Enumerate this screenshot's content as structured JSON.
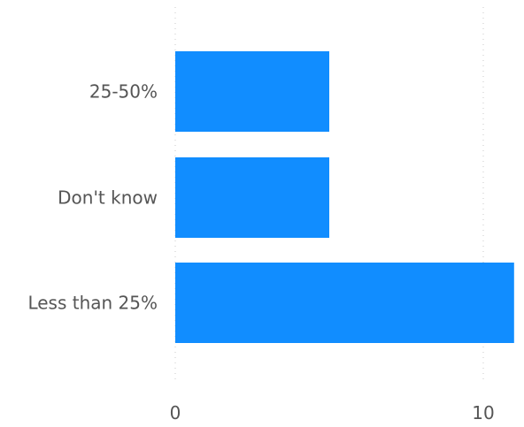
{
  "chart_data": {
    "type": "bar",
    "orientation": "horizontal",
    "categories": [
      "25-50%",
      "Don't know",
      "Less than 25%"
    ],
    "values": [
      5,
      5,
      11
    ],
    "xlim": [
      0,
      11
    ],
    "x_ticks": [
      0,
      10
    ],
    "title": "",
    "xlabel": "",
    "ylabel": "",
    "grid": "vertical dotted",
    "bar_color": "#118dff",
    "gridline_color": "#c8c8c8",
    "text_color": "#555555"
  }
}
